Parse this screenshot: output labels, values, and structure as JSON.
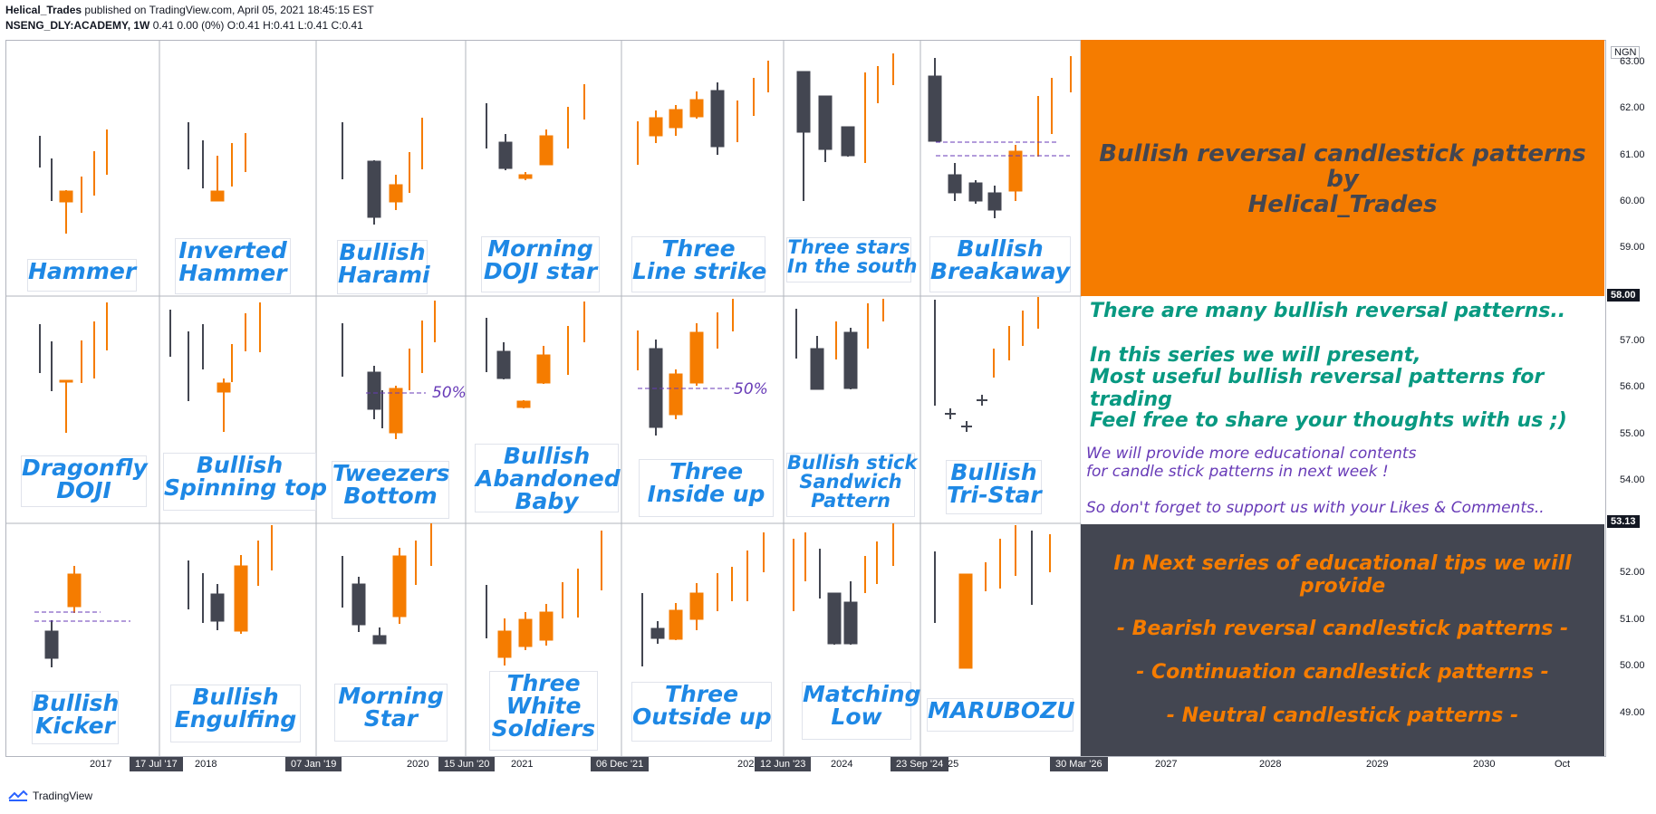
{
  "header": {
    "author": "Helical_Trades",
    "published": " published on TradingView.com, April 05, 2021 18:45:15 EST",
    "symbol": "NSENG_DLY:ACADEMY, 1W",
    "ohlc": " 0.41 0.00 (0%) O:0.41 H:0.41 L:0.41 C:0.41"
  },
  "footer": {
    "brand": "TradingView"
  },
  "colors": {
    "bull": "#f57c00",
    "bear": "#434651",
    "label": "#1e88e5",
    "teal": "#089981",
    "purple": "#673ab7",
    "orangeBox": "#f57c00",
    "darkBox": "#434651"
  },
  "patterns": [
    {
      "name": "Hammer"
    },
    {
      "name": "Inverted\nHammer"
    },
    {
      "name": "Bullish\nHarami"
    },
    {
      "name": "Morning\nDOJI star"
    },
    {
      "name": "Three\nLine strike"
    },
    {
      "name": "Three stars\nIn the south"
    },
    {
      "name": "Bullish\nBreakaway"
    },
    {
      "name": "Dragonfly\nDOJI"
    },
    {
      "name": "Bullish\nSpinning top"
    },
    {
      "name": "Tweezers\nBottom"
    },
    {
      "name": "Bullish\nAbandoned\nBaby"
    },
    {
      "name": "Three\nInside up"
    },
    {
      "name": "Bullish stick\nSandwich\nPattern"
    },
    {
      "name": "Bullish\nTri-Star"
    },
    {
      "name": "Bullish\nKicker"
    },
    {
      "name": "Bullish\nEngulfing"
    },
    {
      "name": "Morning\nStar"
    },
    {
      "name": "Three\nWhite\nSoldiers"
    },
    {
      "name": "Three\nOutside up"
    },
    {
      "name": "Matching\nLow"
    },
    {
      "name": "MARUBOZU"
    }
  ],
  "fifty_labels": [
    "50%",
    "50%"
  ],
  "title_panel": {
    "line1": "Bullish reversal candlestick patterns by",
    "line2": "Helical_Trades"
  },
  "info_panel": {
    "l1": "There are many bullish reversal patterns..",
    "l2": "In this series we will present,",
    "l3": "Most useful bullish reversal patterns for trading",
    "l4": "Feel free to share your thoughts with us ;)",
    "p1": "We will provide more educational contents",
    "p2": "for candle stick patterns in next week !",
    "p3": "So don't forget to support us with your Likes & Comments.."
  },
  "next_panel": {
    "l1": "In Next series of educational tips we will provide",
    "l2": ":",
    "l3": "- Bearish reversal candlestick patterns -",
    "l4": "- Continuation candlestick patterns -",
    "l5": "- Neutral candlestick patterns -"
  },
  "price_scale": {
    "currency": "NGN",
    "ticks": [
      "63.00",
      "62.00",
      "61.00",
      "60.00",
      "59.00",
      "57.00",
      "56.00",
      "55.00",
      "54.00",
      "52.00",
      "51.00",
      "50.00",
      "49.00"
    ],
    "tags": [
      "58.00",
      "53.13"
    ]
  },
  "time_axis": {
    "labels": [
      "2017",
      "2018",
      "2020",
      "2021",
      "2023",
      "2024",
      "25",
      "2",
      "2027",
      "2028",
      "2029",
      "2030",
      "Oct"
    ],
    "tags": [
      "17 Jul '17",
      "07 Jan '19",
      "15 Jun '20",
      "06 Dec '21",
      "12 Jun '23",
      "23 Sep '24",
      "30 Mar '26"
    ]
  }
}
